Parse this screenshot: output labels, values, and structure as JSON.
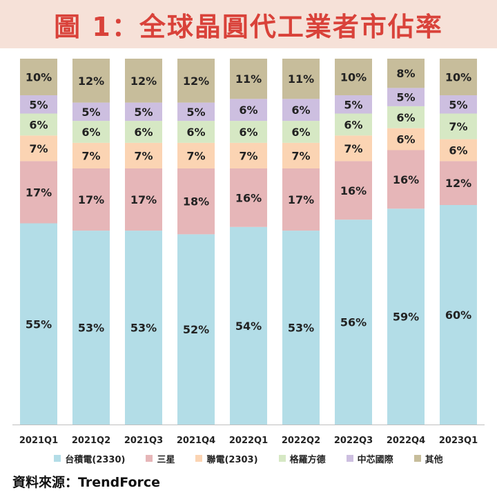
{
  "title": "圖 1：全球晶圓代工業者市佔率",
  "source": "資料來源：TrendForce",
  "colors": {
    "台積電(2330)": "#b3dde7",
    "三星": "#e6b6b8",
    "聯電(2303)": "#fbd4b3",
    "格羅方德": "#d6e8c4",
    "中芯國際": "#cdbfe0",
    "其他": "#c7bd9b"
  },
  "chart_data": {
    "type": "bar",
    "stacked": true,
    "percent_stacked": true,
    "categories": [
      "2021Q1",
      "2021Q2",
      "2021Q3",
      "2021Q4",
      "2022Q1",
      "2022Q2",
      "2022Q3",
      "2022Q4",
      "2023Q1"
    ],
    "series": [
      {
        "name": "台積電(2330)",
        "values": [
          55,
          53,
          53,
          52,
          54,
          53,
          56,
          59,
          60
        ]
      },
      {
        "name": "三星",
        "values": [
          17,
          17,
          17,
          18,
          16,
          17,
          16,
          16,
          12
        ]
      },
      {
        "name": "聯電(2303)",
        "values": [
          7,
          7,
          7,
          7,
          7,
          7,
          7,
          6,
          6
        ]
      },
      {
        "name": "格羅方德",
        "values": [
          6,
          6,
          6,
          6,
          6,
          6,
          6,
          6,
          7
        ]
      },
      {
        "name": "中芯國際",
        "values": [
          5,
          5,
          5,
          5,
          6,
          6,
          5,
          5,
          5
        ]
      },
      {
        "name": "其他",
        "values": [
          10,
          12,
          12,
          12,
          11,
          11,
          10,
          8,
          10
        ]
      }
    ],
    "ylim": [
      0,
      100
    ],
    "value_suffix": "%",
    "legend_position": "bottom"
  }
}
